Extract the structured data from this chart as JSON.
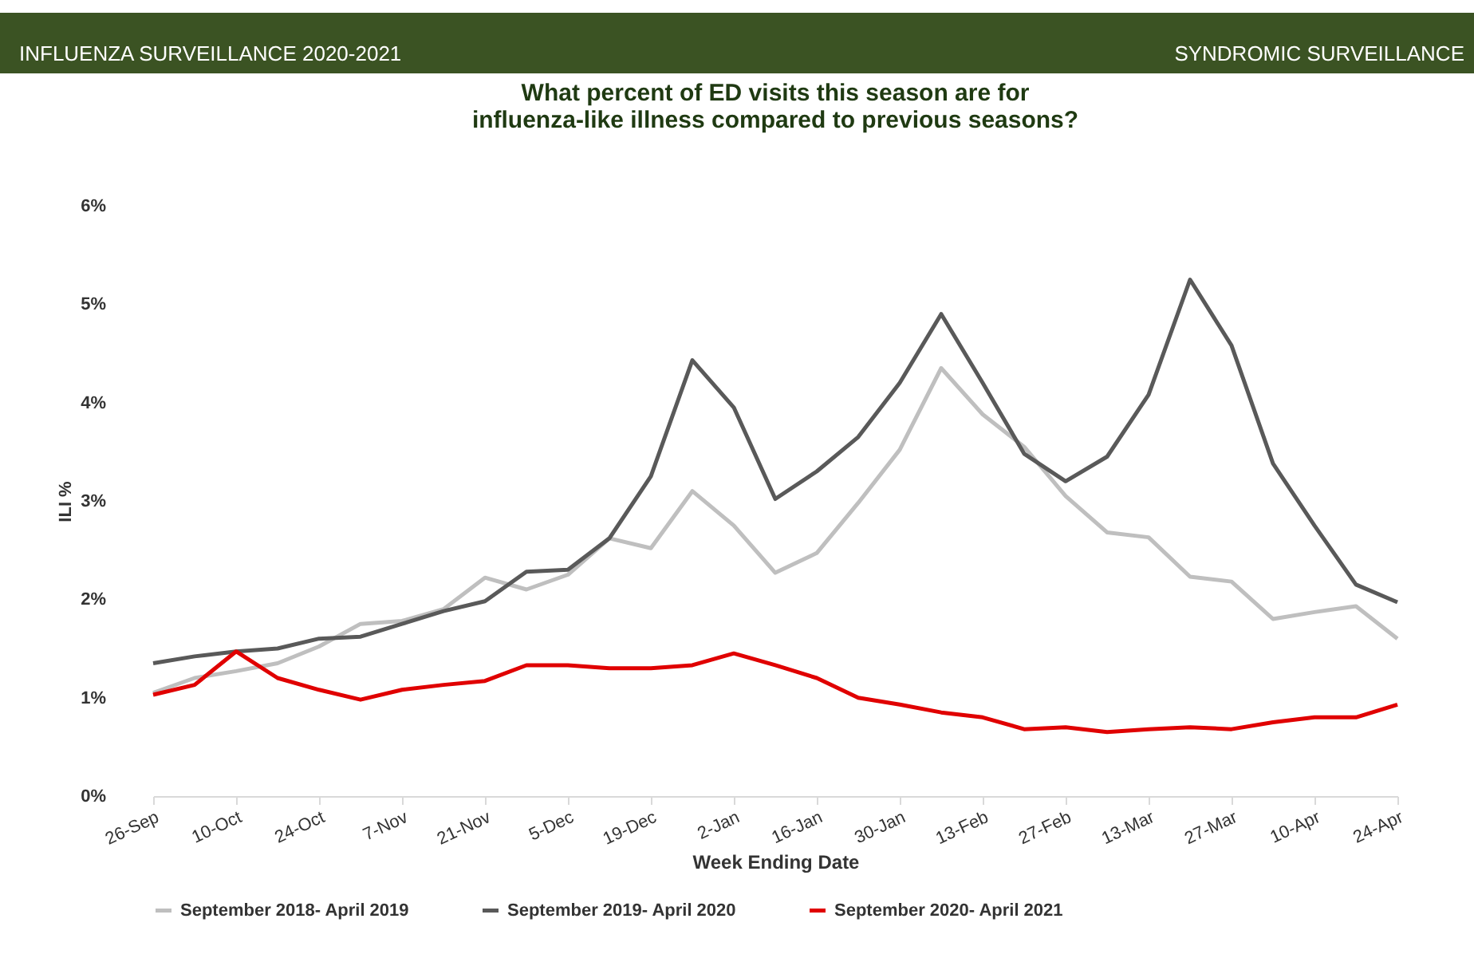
{
  "chart_data": {
    "type": "line",
    "title": "What percent of ED visits this season are for\ninfluenza-like illness compared to previous seasons?",
    "annotations": [
      "INFLUENZA SURVEILLANCE 2020-2021",
      "SYNDROMIC SURVEILLANCE"
    ],
    "xlabel": "Week Ending Date",
    "ylabel": "ILI %",
    "categories": [
      "26-Sep",
      null,
      "10-Oct",
      null,
      "24-Oct",
      null,
      "7-Nov",
      null,
      "21-Nov",
      null,
      "5-Dec",
      null,
      "19-Dec",
      null,
      "2-Jan",
      null,
      "16-Jan",
      null,
      "30-Jan",
      null,
      "13-Feb",
      null,
      "27-Feb",
      null,
      "13-Mar",
      null,
      "27-Mar",
      null,
      "10-Apr",
      null,
      "24-Apr"
    ],
    "series": [
      {
        "name": "September 2018- April 2019",
        "color": "#bfbfbf",
        "values": [
          1.05,
          1.2,
          1.27,
          1.35,
          1.52,
          1.75,
          1.78,
          1.9,
          2.22,
          2.1,
          2.25,
          2.62,
          2.52,
          3.1,
          2.75,
          2.27,
          2.47,
          2.98,
          3.52,
          4.35,
          3.88,
          3.55,
          3.05,
          2.68,
          2.63,
          2.23,
          2.18,
          1.8,
          1.87,
          1.93,
          1.6
        ]
      },
      {
        "name": "September 2019- April 2020",
        "color": "#595959",
        "values": [
          1.35,
          1.42,
          1.47,
          1.5,
          1.6,
          1.62,
          1.75,
          1.88,
          1.98,
          2.28,
          2.3,
          2.62,
          3.25,
          4.43,
          3.95,
          3.02,
          3.3,
          3.65,
          4.2,
          4.9,
          4.2,
          3.48,
          3.2,
          3.45,
          4.08,
          5.25,
          4.58,
          3.38,
          2.75,
          2.15,
          1.97
        ]
      },
      {
        "name": "September 2020- April 2021",
        "color": "#e00000",
        "values": [
          1.03,
          1.13,
          1.47,
          1.2,
          1.08,
          0.98,
          1.08,
          1.13,
          1.17,
          1.33,
          1.33,
          1.3,
          1.3,
          1.33,
          1.45,
          1.33,
          1.2,
          1.0,
          0.93,
          0.85,
          0.8,
          0.68,
          0.7,
          0.65,
          0.68,
          0.7,
          0.68,
          0.75,
          0.8,
          0.8,
          0.93
        ]
      }
    ],
    "ylim": [
      0,
      6
    ],
    "yticks": [
      {
        "value": 0,
        "label": "0%"
      },
      {
        "value": 1,
        "label": "1%"
      },
      {
        "value": 2,
        "label": "2%"
      },
      {
        "value": 3,
        "label": "3%"
      },
      {
        "value": 4,
        "label": "4%"
      },
      {
        "value": 5,
        "label": "5%"
      },
      {
        "value": 6,
        "label": "6%"
      }
    ],
    "legend": "bottom"
  }
}
